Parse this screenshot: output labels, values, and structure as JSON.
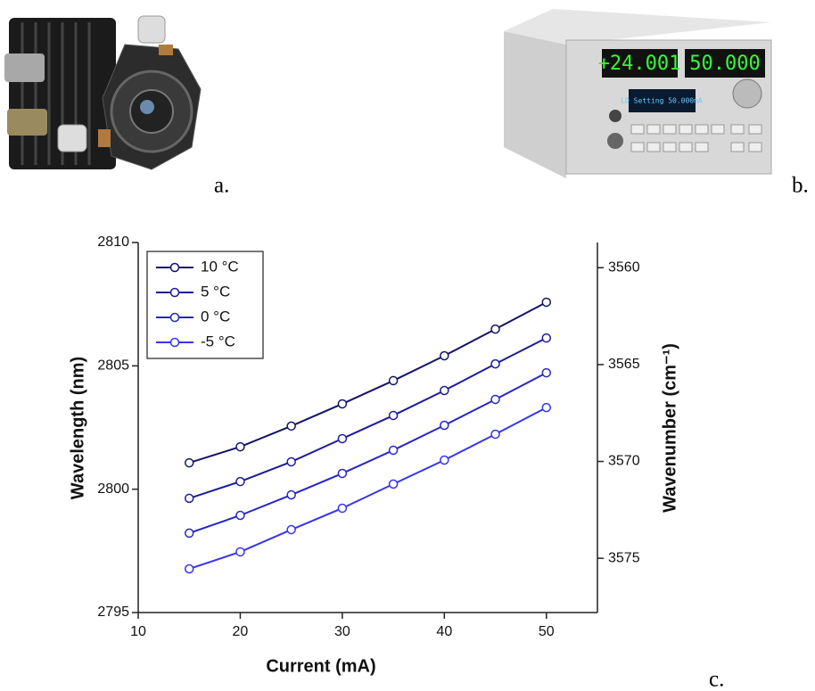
{
  "panel_labels": [
    "a.",
    "b.",
    "c."
  ],
  "chart_data": {
    "type": "line",
    "x_label": "Current (mA)",
    "y_label": "Wavelength (nm)",
    "y2_label": "Wavenumber (cm⁻¹)",
    "x": [
      15,
      20,
      25,
      30,
      35,
      40,
      45,
      50
    ],
    "xlim": [
      10,
      55
    ],
    "xticks": [
      10,
      20,
      30,
      40,
      50
    ],
    "ylim": [
      2795,
      2810
    ],
    "yticks": [
      2795,
      2800,
      2805,
      2810
    ],
    "y2lim": [
      3577.8,
      3558.7
    ],
    "y2ticks": [
      3560,
      3565,
      3570,
      3575
    ],
    "legend": "upper-left",
    "marker": "open-circle",
    "series": [
      {
        "name": "10 °C",
        "color": "#141466",
        "values": [
          2801.07,
          2801.72,
          2802.56,
          2803.46,
          2804.4,
          2805.41,
          2806.49,
          2807.58
        ]
      },
      {
        "name": "5 °C",
        "color": "#1c1c9c",
        "values": [
          2799.63,
          2800.31,
          2801.11,
          2802.05,
          2802.99,
          2804.0,
          2805.08,
          2806.13
        ]
      },
      {
        "name": "0 °C",
        "color": "#2626c8",
        "values": [
          2798.22,
          2798.94,
          2799.77,
          2800.64,
          2801.58,
          2802.59,
          2803.64,
          2804.72
        ]
      },
      {
        "name": "-5 °C",
        "color": "#3535f0",
        "values": [
          2796.77,
          2797.46,
          2798.36,
          2799.23,
          2800.21,
          2801.18,
          2802.23,
          2803.31
        ]
      }
    ]
  }
}
